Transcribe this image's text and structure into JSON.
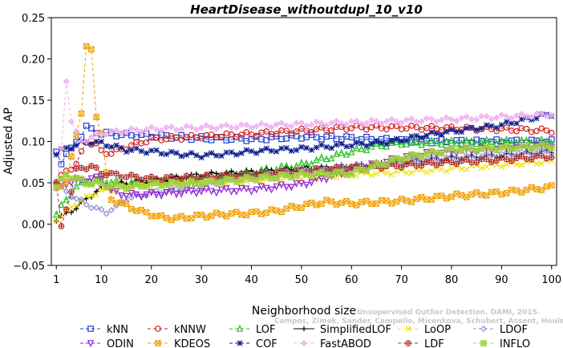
{
  "chart_data": {
    "type": "line",
    "title": "HeartDisease_withoutdupl_10_v10",
    "xlabel": "Neighborhood size",
    "ylabel": "Adjusted AP",
    "xlim": [
      0,
      101
    ],
    "ylim": [
      -0.05,
      0.25
    ],
    "xticks": [
      1,
      10,
      20,
      30,
      40,
      50,
      60,
      70,
      80,
      90,
      100
    ],
    "yticks": [
      -0.05,
      0.0,
      0.05,
      0.1,
      0.15,
      0.2,
      0.25
    ],
    "ytick_labels": [
      "−0.05",
      "0.00",
      "0.05",
      "0.10",
      "0.15",
      "0.20",
      "0.25"
    ],
    "grid": false,
    "legend_position": "bottom",
    "watermark": {
      "line1": "Unsupervised Outlier Detection. DAMI, 2015.",
      "line2": "Campos, Zimek, Sander, Campello, Micenkova, Schubert, Assent, Houle"
    },
    "series": [
      {
        "name": "kNN",
        "color": "#1f3fd0",
        "marker": "square",
        "dash": "4,3",
        "knots": [
          [
            1,
            0.087
          ],
          [
            2,
            0.075
          ],
          [
            3,
            0.085
          ],
          [
            4,
            0.09
          ],
          [
            5,
            0.1
          ],
          [
            6,
            0.108
          ],
          [
            7,
            0.118
          ],
          [
            8,
            0.114
          ],
          [
            9,
            0.112
          ],
          [
            10,
            0.11
          ],
          [
            15,
            0.108
          ],
          [
            20,
            0.107
          ],
          [
            30,
            0.104
          ],
          [
            40,
            0.103
          ],
          [
            50,
            0.106
          ],
          [
            60,
            0.104
          ],
          [
            70,
            0.101
          ],
          [
            80,
            0.1
          ],
          [
            90,
            0.1
          ],
          [
            100,
            0.1
          ]
        ]
      },
      {
        "name": "kNNW",
        "color": "#d02020",
        "marker": "circle",
        "dash": "4,3",
        "knots": [
          [
            1,
            0.049
          ],
          [
            3,
            0.065
          ],
          [
            5,
            0.072
          ],
          [
            7,
            0.1
          ],
          [
            9,
            0.096
          ],
          [
            10,
            0.088
          ],
          [
            12,
            0.086
          ],
          [
            15,
            0.093
          ],
          [
            20,
            0.103
          ],
          [
            30,
            0.106
          ],
          [
            40,
            0.109
          ],
          [
            50,
            0.113
          ],
          [
            60,
            0.117
          ],
          [
            70,
            0.117
          ],
          [
            80,
            0.116
          ],
          [
            90,
            0.115
          ],
          [
            100,
            0.113
          ]
        ]
      },
      {
        "name": "LOF",
        "color": "#20c020",
        "marker": "triangle",
        "dash": "4,3",
        "knots": [
          [
            1,
            0.012
          ],
          [
            3,
            0.03
          ],
          [
            5,
            0.045
          ],
          [
            7,
            0.052
          ],
          [
            10,
            0.052
          ],
          [
            15,
            0.05
          ],
          [
            20,
            0.053
          ],
          [
            30,
            0.057
          ],
          [
            40,
            0.063
          ],
          [
            50,
            0.072
          ],
          [
            55,
            0.08
          ],
          [
            60,
            0.088
          ],
          [
            65,
            0.095
          ],
          [
            70,
            0.098
          ],
          [
            80,
            0.099
          ],
          [
            90,
            0.1
          ],
          [
            100,
            0.1
          ]
        ]
      },
      {
        "name": "SimplifiedLOF",
        "color": "#000000",
        "marker": "plus",
        "dash": "",
        "knots": [
          [
            1,
            0.006
          ],
          [
            3,
            0.012
          ],
          [
            5,
            0.02
          ],
          [
            7,
            0.03
          ],
          [
            9,
            0.04
          ],
          [
            11,
            0.047
          ],
          [
            15,
            0.05
          ],
          [
            20,
            0.052
          ],
          [
            30,
            0.06
          ],
          [
            40,
            0.063
          ],
          [
            50,
            0.067
          ],
          [
            60,
            0.07
          ],
          [
            70,
            0.075
          ],
          [
            80,
            0.08
          ],
          [
            90,
            0.083
          ],
          [
            100,
            0.088
          ]
        ]
      },
      {
        "name": "LoOP",
        "color": "#f0e000",
        "marker": "x",
        "dash": "4,3",
        "knots": [
          [
            1,
            0.006
          ],
          [
            3,
            0.015
          ],
          [
            5,
            0.025
          ],
          [
            8,
            0.035
          ],
          [
            10,
            0.04
          ],
          [
            15,
            0.045
          ],
          [
            20,
            0.048
          ],
          [
            30,
            0.05
          ],
          [
            40,
            0.053
          ],
          [
            50,
            0.056
          ],
          [
            60,
            0.06
          ],
          [
            70,
            0.063
          ],
          [
            80,
            0.067
          ],
          [
            90,
            0.072
          ],
          [
            100,
            0.076
          ]
        ]
      },
      {
        "name": "LDOF",
        "color": "#9090d8",
        "marker": "diamond",
        "dash": "4,3",
        "knots": [
          [
            1,
            0.048
          ],
          [
            3,
            0.04
          ],
          [
            5,
            0.03
          ],
          [
            7,
            0.025
          ],
          [
            9,
            0.018
          ],
          [
            11,
            0.015
          ],
          [
            13,
            0.02
          ],
          [
            15,
            0.03
          ],
          [
            20,
            0.038
          ],
          [
            30,
            0.046
          ],
          [
            40,
            0.06
          ],
          [
            50,
            0.065
          ],
          [
            60,
            0.07
          ],
          [
            70,
            0.075
          ],
          [
            80,
            0.08
          ],
          [
            90,
            0.084
          ],
          [
            100,
            0.088
          ]
        ]
      },
      {
        "name": "ODIN",
        "color": "#9020d0",
        "marker": "triangle-down",
        "dash": "4,3",
        "knots": [
          [
            1,
            0.045
          ],
          [
            3,
            0.05
          ],
          [
            5,
            0.052
          ],
          [
            8,
            0.055
          ],
          [
            10,
            0.055
          ],
          [
            12,
            0.04
          ],
          [
            15,
            0.035
          ],
          [
            20,
            0.036
          ],
          [
            25,
            0.038
          ],
          [
            30,
            0.04
          ],
          [
            40,
            0.042
          ],
          [
            50,
            0.048
          ],
          [
            60,
            0.065
          ],
          [
            70,
            0.08
          ],
          [
            75,
            0.085
          ],
          [
            80,
            0.088
          ],
          [
            90,
            0.092
          ],
          [
            100,
            0.095
          ]
        ]
      },
      {
        "name": "KDEOS",
        "color": "#f0a000",
        "marker": "square-x",
        "dash": "4,3",
        "knots": [
          [
            1,
            0.045
          ],
          [
            3,
            0.05
          ],
          [
            5,
            0.11
          ],
          [
            6,
            0.135
          ],
          [
            7,
            0.213
          ],
          [
            8,
            0.211
          ],
          [
            9,
            0.132
          ],
          [
            10,
            0.11
          ],
          [
            11,
            0.06
          ],
          [
            12,
            0.03
          ],
          [
            14,
            0.025
          ],
          [
            16,
            0.02
          ],
          [
            18,
            0.015
          ],
          [
            20,
            0.012
          ],
          [
            22,
            0.008
          ],
          [
            25,
            0.007
          ],
          [
            30,
            0.01
          ],
          [
            35,
            0.012
          ],
          [
            40,
            0.013
          ],
          [
            45,
            0.016
          ],
          [
            50,
            0.022
          ],
          [
            55,
            0.027
          ],
          [
            60,
            0.025
          ],
          [
            70,
            0.028
          ],
          [
            80,
            0.034
          ],
          [
            90,
            0.038
          ],
          [
            100,
            0.045
          ]
        ]
      },
      {
        "name": "COF",
        "color": "#102090",
        "marker": "star",
        "dash": "4,3",
        "knots": [
          [
            1,
            0.085
          ],
          [
            3,
            0.092
          ],
          [
            5,
            0.095
          ],
          [
            7,
            0.1
          ],
          [
            10,
            0.098
          ],
          [
            15,
            0.09
          ],
          [
            20,
            0.088
          ],
          [
            25,
            0.085
          ],
          [
            30,
            0.083
          ],
          [
            35,
            0.085
          ],
          [
            40,
            0.088
          ],
          [
            45,
            0.09
          ],
          [
            50,
            0.091
          ],
          [
            55,
            0.094
          ],
          [
            60,
            0.096
          ],
          [
            65,
            0.098
          ],
          [
            70,
            0.102
          ],
          [
            75,
            0.108
          ],
          [
            80,
            0.112
          ],
          [
            85,
            0.116
          ],
          [
            90,
            0.12
          ],
          [
            95,
            0.127
          ],
          [
            100,
            0.133
          ]
        ]
      },
      {
        "name": "FastABOD",
        "color": "#f0b0f0",
        "marker": "cross-diamond",
        "dash": "4,3",
        "knots": [
          [
            1,
            0.04
          ],
          [
            2,
            0.09
          ],
          [
            3,
            0.175
          ],
          [
            4,
            0.125
          ],
          [
            5,
            0.11
          ],
          [
            6,
            0.1
          ],
          [
            8,
            0.105
          ],
          [
            10,
            0.11
          ],
          [
            15,
            0.113
          ],
          [
            20,
            0.115
          ],
          [
            30,
            0.117
          ],
          [
            40,
            0.119
          ],
          [
            50,
            0.121
          ],
          [
            60,
            0.123
          ],
          [
            70,
            0.125
          ],
          [
            80,
            0.127
          ],
          [
            90,
            0.13
          ],
          [
            100,
            0.133
          ]
        ]
      },
      {
        "name": "LDF",
        "color": "#b03030",
        "marker": "circle-plus",
        "dash": "4,3",
        "knots": [
          [
            1,
            0.049
          ],
          [
            2,
            -0.004
          ],
          [
            3,
            0.02
          ],
          [
            4,
            0.04
          ],
          [
            5,
            0.065
          ],
          [
            6,
            0.068
          ],
          [
            8,
            0.07
          ],
          [
            10,
            0.062
          ],
          [
            15,
            0.058
          ],
          [
            20,
            0.055
          ],
          [
            30,
            0.057
          ],
          [
            40,
            0.06
          ],
          [
            50,
            0.064
          ],
          [
            60,
            0.068
          ],
          [
            70,
            0.071
          ],
          [
            80,
            0.075
          ],
          [
            90,
            0.078
          ],
          [
            100,
            0.082
          ]
        ]
      },
      {
        "name": "INFLO",
        "color": "#a0d040",
        "marker": "box-x",
        "dash": "4,3",
        "knots": [
          [
            1,
            0.045
          ],
          [
            3,
            0.06
          ],
          [
            5,
            0.055
          ],
          [
            7,
            0.05
          ],
          [
            9,
            0.05
          ],
          [
            10,
            0.048
          ],
          [
            15,
            0.045
          ],
          [
            20,
            0.048
          ],
          [
            30,
            0.05
          ],
          [
            40,
            0.055
          ],
          [
            50,
            0.06
          ],
          [
            60,
            0.062
          ],
          [
            70,
            0.08
          ],
          [
            75,
            0.085
          ],
          [
            80,
            0.09
          ],
          [
            90,
            0.092
          ],
          [
            100,
            0.095
          ]
        ]
      }
    ]
  }
}
